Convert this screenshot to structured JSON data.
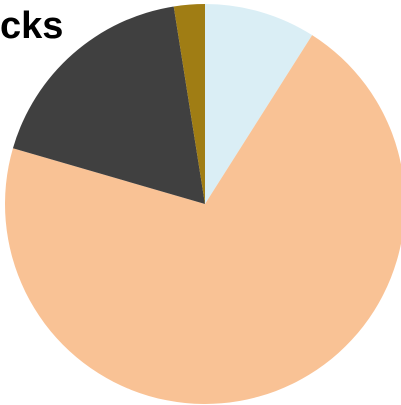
{
  "chart_data": {
    "type": "pie",
    "title": "cks",
    "values": [
      9,
      70.5,
      18,
      2.5
    ],
    "colors": [
      "#daeef5",
      "#f9c295",
      "#404040",
      "#a07d14"
    ],
    "start_angle": 0,
    "direction": "clockwise"
  }
}
